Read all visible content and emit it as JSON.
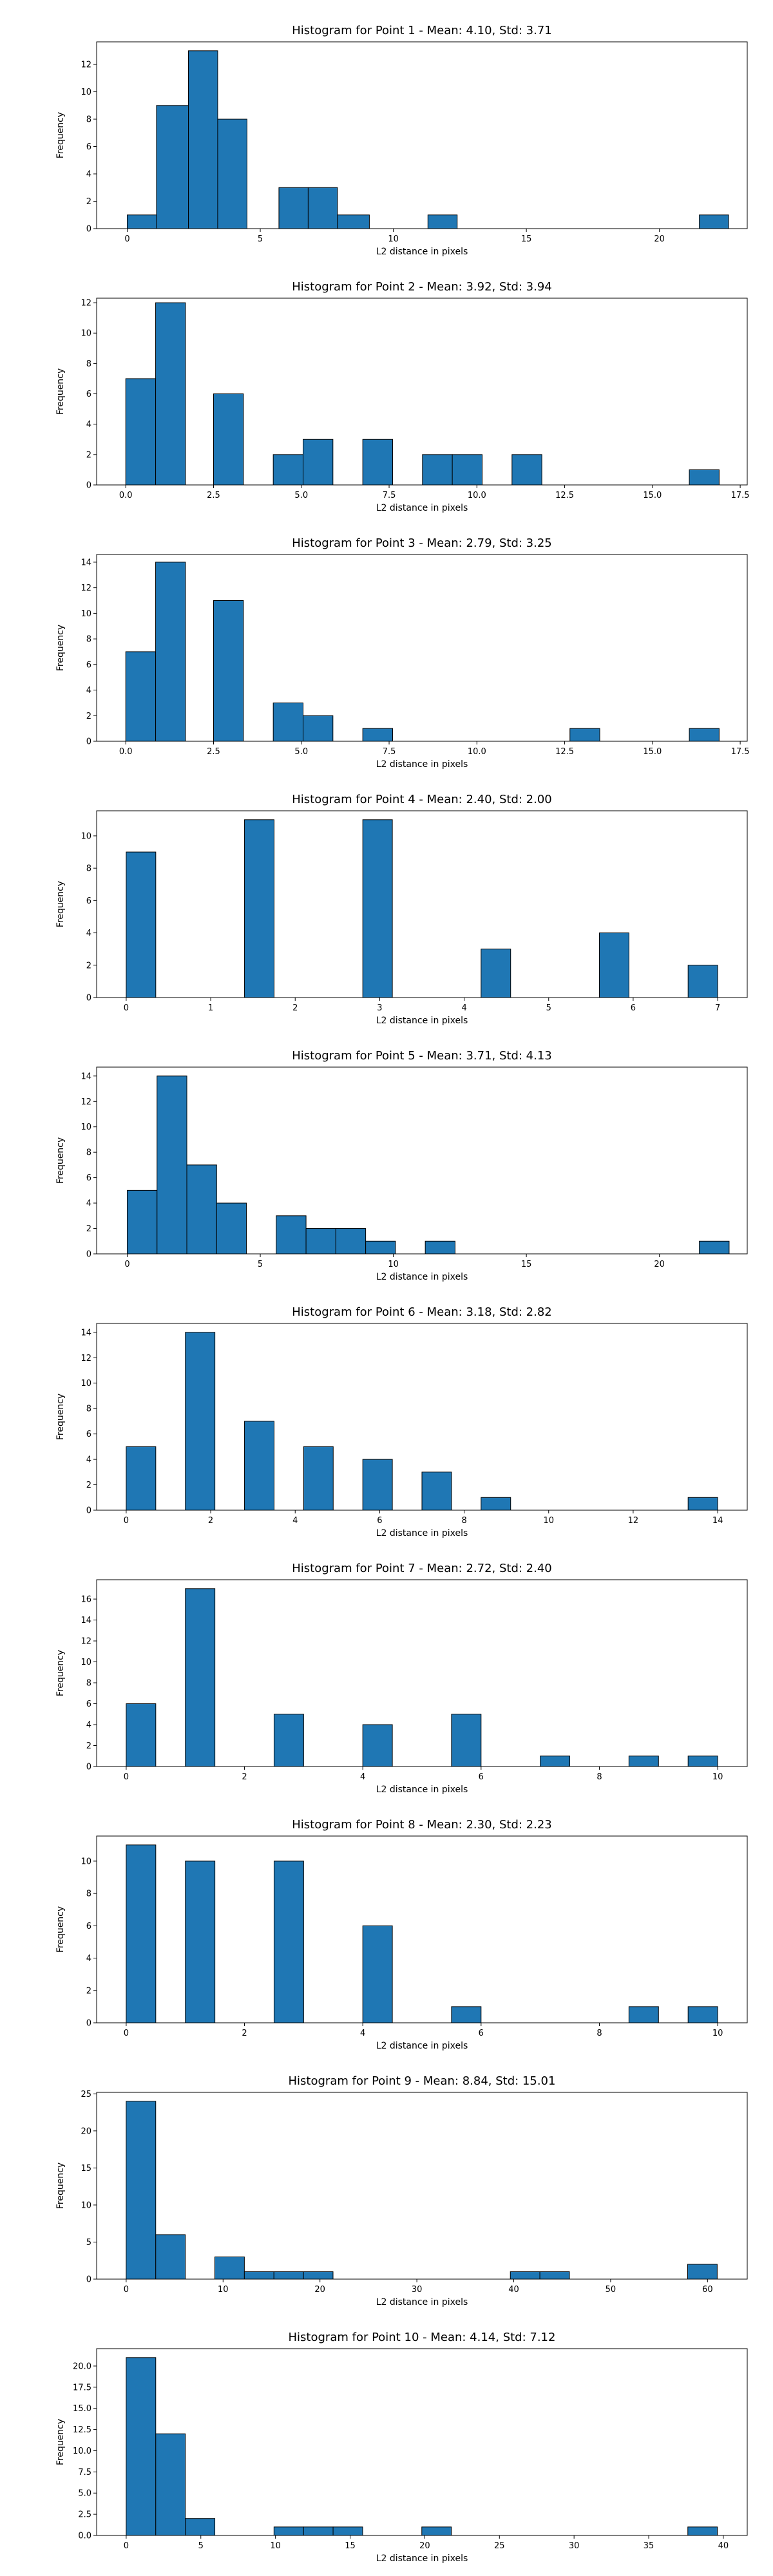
{
  "chart_data": [
    {
      "type": "bar",
      "title": "Histogram for Point 1 - Mean: 4.10, Std: 3.71",
      "xlabel": "L2 distance in pixels",
      "ylabel": "Frequency",
      "xlim": [
        -1.15,
        23.3
      ],
      "ylim": [
        0,
        13.65
      ],
      "xticks": [
        0,
        5,
        10,
        15,
        20
      ],
      "xtick_labels": [
        "0",
        "5",
        "10",
        "15",
        "20"
      ],
      "yticks": [
        0,
        2,
        4,
        6,
        8,
        10,
        12
      ],
      "ytick_labels": [
        "0",
        "2",
        "4",
        "6",
        "8",
        "10",
        "12"
      ],
      "bins": [
        {
          "x0": 0.0,
          "x1": 1.1,
          "count": 1
        },
        {
          "x0": 1.1,
          "x1": 2.3,
          "count": 9
        },
        {
          "x0": 2.3,
          "x1": 3.4,
          "count": 13
        },
        {
          "x0": 3.4,
          "x1": 4.5,
          "count": 8
        },
        {
          "x0": 5.7,
          "x1": 6.8,
          "count": 3
        },
        {
          "x0": 6.8,
          "x1": 7.9,
          "count": 3
        },
        {
          "x0": 7.9,
          "x1": 9.1,
          "count": 1
        },
        {
          "x0": 11.3,
          "x1": 12.4,
          "count": 1
        },
        {
          "x0": 21.5,
          "x1": 22.6,
          "count": 1
        }
      ]
    },
    {
      "type": "bar",
      "title": "Histogram for Point 2 - Mean: 3.92, Std: 3.94",
      "xlabel": "L2 distance in pixels",
      "ylabel": "Frequency",
      "xlim": [
        -0.83,
        17.7
      ],
      "ylim": [
        0,
        12.3
      ],
      "xticks": [
        0.0,
        2.5,
        5.0,
        7.5,
        10.0,
        12.5,
        15.0,
        17.5
      ],
      "xtick_labels": [
        "0.0",
        "2.5",
        "5.0",
        "7.5",
        "10.0",
        "12.5",
        "15.0",
        "17.5"
      ],
      "yticks": [
        0,
        2,
        4,
        6,
        8,
        10,
        12
      ],
      "ytick_labels": [
        "0",
        "2",
        "4",
        "6",
        "8",
        "10",
        "12"
      ],
      "bins": [
        {
          "x0": 0.0,
          "x1": 0.85,
          "count": 7
        },
        {
          "x0": 0.85,
          "x1": 1.7,
          "count": 12
        },
        {
          "x0": 2.5,
          "x1": 3.35,
          "count": 6
        },
        {
          "x0": 4.2,
          "x1": 5.05,
          "count": 2
        },
        {
          "x0": 5.05,
          "x1": 5.9,
          "count": 3
        },
        {
          "x0": 6.75,
          "x1": 7.6,
          "count": 3
        },
        {
          "x0": 8.45,
          "x1": 9.3,
          "count": 2
        },
        {
          "x0": 9.3,
          "x1": 10.15,
          "count": 2
        },
        {
          "x0": 11.0,
          "x1": 11.85,
          "count": 2
        },
        {
          "x0": 16.05,
          "x1": 16.9,
          "count": 1
        }
      ]
    },
    {
      "type": "bar",
      "title": "Histogram for Point 3 - Mean: 2.79, Std: 3.25",
      "xlabel": "L2 distance in pixels",
      "ylabel": "Frequency",
      "xlim": [
        -0.83,
        17.7
      ],
      "ylim": [
        0,
        14.6
      ],
      "xticks": [
        0.0,
        2.5,
        5.0,
        7.5,
        10.0,
        12.5,
        15.0,
        17.5
      ],
      "xtick_labels": [
        "0.0",
        "2.5",
        "5.0",
        "7.5",
        "10.0",
        "12.5",
        "15.0",
        "17.5"
      ],
      "yticks": [
        0,
        2,
        4,
        6,
        8,
        10,
        12,
        14
      ],
      "ytick_labels": [
        "0",
        "2",
        "4",
        "6",
        "8",
        "10",
        "12",
        "14"
      ],
      "bins": [
        {
          "x0": 0.0,
          "x1": 0.85,
          "count": 7
        },
        {
          "x0": 0.85,
          "x1": 1.7,
          "count": 14
        },
        {
          "x0": 2.5,
          "x1": 3.35,
          "count": 11
        },
        {
          "x0": 4.2,
          "x1": 5.05,
          "count": 3
        },
        {
          "x0": 5.05,
          "x1": 5.9,
          "count": 2
        },
        {
          "x0": 6.75,
          "x1": 7.6,
          "count": 1
        },
        {
          "x0": 12.65,
          "x1": 13.5,
          "count": 1
        },
        {
          "x0": 16.05,
          "x1": 16.9,
          "count": 1
        }
      ]
    },
    {
      "type": "bar",
      "title": "Histogram for Point 4 - Mean: 2.40, Std: 2.00",
      "xlabel": "L2 distance in pixels",
      "ylabel": "Frequency",
      "xlim": [
        -0.35,
        7.35
      ],
      "ylim": [
        0,
        11.55
      ],
      "xticks": [
        0,
        1,
        2,
        3,
        4,
        5,
        6,
        7
      ],
      "xtick_labels": [
        "0",
        "1",
        "2",
        "3",
        "4",
        "5",
        "6",
        "7"
      ],
      "yticks": [
        0,
        2,
        4,
        6,
        8,
        10
      ],
      "ytick_labels": [
        "0",
        "2",
        "4",
        "6",
        "8",
        "10"
      ],
      "bins": [
        {
          "x0": 0.0,
          "x1": 0.35,
          "count": 9
        },
        {
          "x0": 1.4,
          "x1": 1.75,
          "count": 11
        },
        {
          "x0": 2.8,
          "x1": 3.15,
          "count": 11
        },
        {
          "x0": 4.2,
          "x1": 4.55,
          "count": 3
        },
        {
          "x0": 5.6,
          "x1": 5.95,
          "count": 4
        },
        {
          "x0": 6.65,
          "x1": 7.0,
          "count": 2
        }
      ]
    },
    {
      "type": "bar",
      "title": "Histogram for Point 5 - Mean: 3.71, Std: 4.13",
      "xlabel": "L2 distance in pixels",
      "ylabel": "Frequency",
      "xlim": [
        -1.15,
        23.3
      ],
      "ylim": [
        0,
        14.7
      ],
      "xticks": [
        0,
        5,
        10,
        15,
        20
      ],
      "xtick_labels": [
        "0",
        "5",
        "10",
        "15",
        "20"
      ],
      "yticks": [
        0,
        2,
        4,
        6,
        8,
        10,
        12,
        14
      ],
      "ytick_labels": [
        "0",
        "2",
        "4",
        "6",
        "8",
        "10",
        "12",
        "14"
      ],
      "bins": [
        {
          "x0": 0.0,
          "x1": 1.12,
          "count": 5
        },
        {
          "x0": 1.12,
          "x1": 2.24,
          "count": 14
        },
        {
          "x0": 2.24,
          "x1": 3.36,
          "count": 7
        },
        {
          "x0": 3.36,
          "x1": 4.48,
          "count": 4
        },
        {
          "x0": 5.6,
          "x1": 6.72,
          "count": 3
        },
        {
          "x0": 6.72,
          "x1": 7.84,
          "count": 2
        },
        {
          "x0": 7.84,
          "x1": 8.96,
          "count": 2
        },
        {
          "x0": 8.96,
          "x1": 10.08,
          "count": 1
        },
        {
          "x0": 11.2,
          "x1": 12.32,
          "count": 1
        },
        {
          "x0": 21.5,
          "x1": 22.62,
          "count": 1
        }
      ]
    },
    {
      "type": "bar",
      "title": "Histogram for Point 6 - Mean: 3.18, Std: 2.82",
      "xlabel": "L2 distance in pixels",
      "ylabel": "Frequency",
      "xlim": [
        -0.7,
        14.7
      ],
      "ylim": [
        0,
        14.7
      ],
      "xticks": [
        0,
        2,
        4,
        6,
        8,
        10,
        12,
        14
      ],
      "xtick_labels": [
        "0",
        "2",
        "4",
        "6",
        "8",
        "10",
        "12",
        "14"
      ],
      "yticks": [
        0,
        2,
        4,
        6,
        8,
        10,
        12,
        14
      ],
      "ytick_labels": [
        "0",
        "2",
        "4",
        "6",
        "8",
        "10",
        "12",
        "14"
      ],
      "bins": [
        {
          "x0": 0.0,
          "x1": 0.7,
          "count": 5
        },
        {
          "x0": 1.4,
          "x1": 2.1,
          "count": 14
        },
        {
          "x0": 2.8,
          "x1": 3.5,
          "count": 7
        },
        {
          "x0": 4.2,
          "x1": 4.9,
          "count": 5
        },
        {
          "x0": 5.6,
          "x1": 6.3,
          "count": 4
        },
        {
          "x0": 7.0,
          "x1": 7.7,
          "count": 3
        },
        {
          "x0": 8.4,
          "x1": 9.1,
          "count": 1
        },
        {
          "x0": 13.3,
          "x1": 14.0,
          "count": 1
        }
      ]
    },
    {
      "type": "bar",
      "title": "Histogram for Point 7 - Mean: 2.72, Std: 2.40",
      "xlabel": "L2 distance in pixels",
      "ylabel": "Frequency",
      "xlim": [
        -0.5,
        10.5
      ],
      "ylim": [
        0,
        17.85
      ],
      "xticks": [
        0,
        2,
        4,
        6,
        8,
        10
      ],
      "xtick_labels": [
        "0",
        "2",
        "4",
        "6",
        "8",
        "10"
      ],
      "yticks": [
        0,
        2,
        4,
        6,
        8,
        10,
        12,
        14,
        16
      ],
      "ytick_labels": [
        "0",
        "2",
        "4",
        "6",
        "8",
        "10",
        "12",
        "14",
        "16"
      ],
      "bins": [
        {
          "x0": 0.0,
          "x1": 0.5,
          "count": 6
        },
        {
          "x0": 1.0,
          "x1": 1.5,
          "count": 17
        },
        {
          "x0": 2.5,
          "x1": 3.0,
          "count": 5
        },
        {
          "x0": 4.0,
          "x1": 4.5,
          "count": 4
        },
        {
          "x0": 5.5,
          "x1": 6.0,
          "count": 5
        },
        {
          "x0": 7.0,
          "x1": 7.5,
          "count": 1
        },
        {
          "x0": 8.5,
          "x1": 9.0,
          "count": 1
        },
        {
          "x0": 9.5,
          "x1": 10.0,
          "count": 1
        }
      ]
    },
    {
      "type": "bar",
      "title": "Histogram for Point 8 - Mean: 2.30, Std: 2.23",
      "xlabel": "L2 distance in pixels",
      "ylabel": "Frequency",
      "xlim": [
        -0.5,
        10.5
      ],
      "ylim": [
        0,
        11.55
      ],
      "xticks": [
        0,
        2,
        4,
        6,
        8,
        10
      ],
      "xtick_labels": [
        "0",
        "2",
        "4",
        "6",
        "8",
        "10"
      ],
      "yticks": [
        0,
        2,
        4,
        6,
        8,
        10
      ],
      "ytick_labels": [
        "0",
        "2",
        "4",
        "6",
        "8",
        "10"
      ],
      "bins": [
        {
          "x0": 0.0,
          "x1": 0.5,
          "count": 11
        },
        {
          "x0": 1.0,
          "x1": 1.5,
          "count": 10
        },
        {
          "x0": 2.5,
          "x1": 3.0,
          "count": 10
        },
        {
          "x0": 4.0,
          "x1": 4.5,
          "count": 6
        },
        {
          "x0": 5.5,
          "x1": 6.0,
          "count": 1
        },
        {
          "x0": 8.5,
          "x1": 9.0,
          "count": 1
        },
        {
          "x0": 9.5,
          "x1": 10.0,
          "count": 1
        }
      ]
    },
    {
      "type": "bar",
      "title": "Histogram for Point 9 - Mean: 8.84, Std: 15.01",
      "xlabel": "L2 distance in pixels",
      "ylabel": "Frequency",
      "xlim": [
        -3.05,
        64.1
      ],
      "ylim": [
        0,
        25.2
      ],
      "xticks": [
        0,
        10,
        20,
        30,
        40,
        50,
        60
      ],
      "xtick_labels": [
        "0",
        "10",
        "20",
        "30",
        "40",
        "50",
        "60"
      ],
      "yticks": [
        0,
        5,
        10,
        15,
        20,
        25
      ],
      "ytick_labels": [
        "0",
        "5",
        "10",
        "15",
        "20",
        "25"
      ],
      "bins": [
        {
          "x0": 0.0,
          "x1": 3.05,
          "count": 24
        },
        {
          "x0": 3.05,
          "x1": 6.1,
          "count": 6
        },
        {
          "x0": 9.15,
          "x1": 12.2,
          "count": 3
        },
        {
          "x0": 12.2,
          "x1": 15.25,
          "count": 1
        },
        {
          "x0": 15.25,
          "x1": 18.3,
          "count": 1
        },
        {
          "x0": 18.3,
          "x1": 21.35,
          "count": 1
        },
        {
          "x0": 39.65,
          "x1": 42.7,
          "count": 1
        },
        {
          "x0": 42.7,
          "x1": 45.75,
          "count": 1
        },
        {
          "x0": 57.95,
          "x1": 61.0,
          "count": 2
        }
      ]
    },
    {
      "type": "bar",
      "title": "Histogram for Point 10 - Mean: 4.14, Std: 7.12",
      "xlabel": "L2 distance in pixels",
      "ylabel": "Frequency",
      "xlim": [
        -1.98,
        41.6
      ],
      "ylim": [
        0,
        22.05
      ],
      "xticks": [
        0,
        5,
        10,
        15,
        20,
        25,
        30,
        35,
        40
      ],
      "xtick_labels": [
        "0",
        "5",
        "10",
        "15",
        "20",
        "25",
        "30",
        "35",
        "40"
      ],
      "yticks": [
        0.0,
        2.5,
        5.0,
        7.5,
        10.0,
        12.5,
        15.0,
        17.5,
        20.0
      ],
      "ytick_labels": [
        "0.0",
        "2.5",
        "5.0",
        "7.5",
        "10.0",
        "12.5",
        "15.0",
        "17.5",
        "20.0"
      ],
      "bins": [
        {
          "x0": 0.0,
          "x1": 1.98,
          "count": 21
        },
        {
          "x0": 1.98,
          "x1": 3.96,
          "count": 12
        },
        {
          "x0": 3.96,
          "x1": 5.94,
          "count": 2
        },
        {
          "x0": 9.9,
          "x1": 11.88,
          "count": 1
        },
        {
          "x0": 11.88,
          "x1": 13.86,
          "count": 1
        },
        {
          "x0": 13.86,
          "x1": 15.84,
          "count": 1
        },
        {
          "x0": 19.8,
          "x1": 21.78,
          "count": 1
        },
        {
          "x0": 37.62,
          "x1": 39.6,
          "count": 1
        }
      ]
    }
  ]
}
